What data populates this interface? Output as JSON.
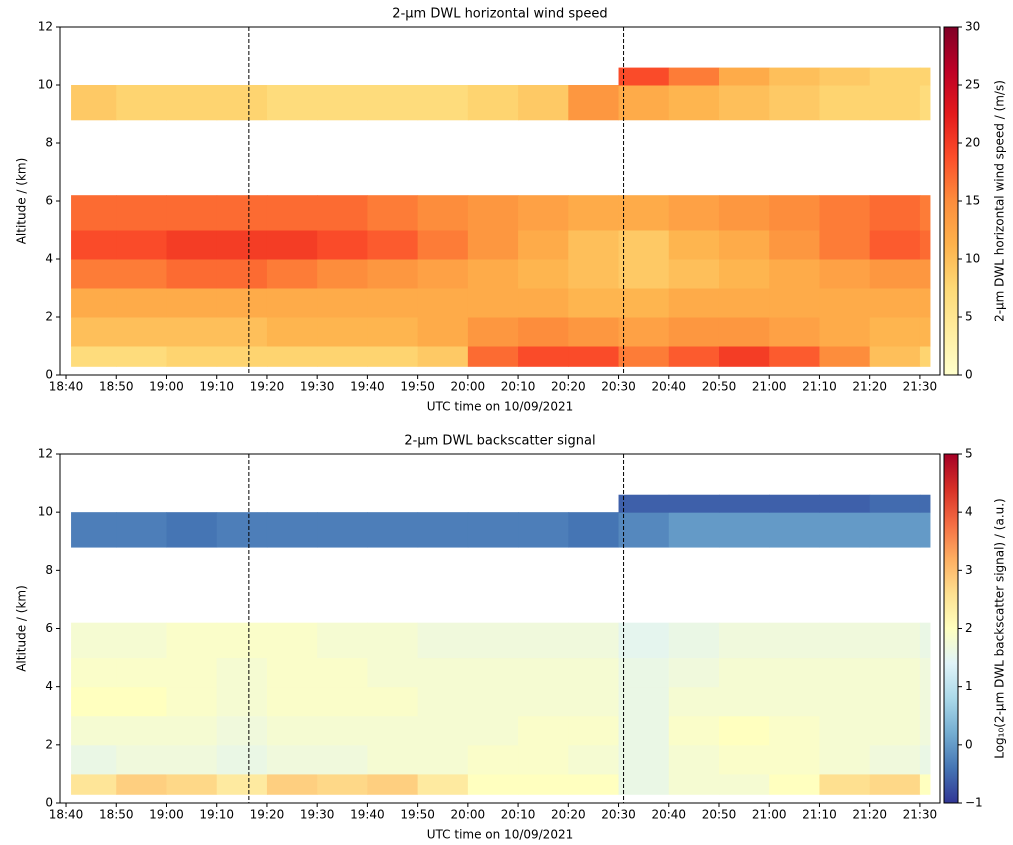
{
  "chart_data": [
    {
      "type": "heatmap",
      "title": "2-µm DWL horizontal wind speed",
      "xlabel": "UTC time on 10/09/2021",
      "ylabel": "Altitude / (km)",
      "colorbar_label": "2-µm DWL horizontal wind speed / (m/s)",
      "xlim": [
        1118.8,
        1294
      ],
      "ylim": [
        0,
        12
      ],
      "xticks": [
        {
          "value": 1120,
          "label": "18:40"
        },
        {
          "value": 1130,
          "label": "18:50"
        },
        {
          "value": 1140,
          "label": "19:00"
        },
        {
          "value": 1150,
          "label": "19:10"
        },
        {
          "value": 1160,
          "label": "19:20"
        },
        {
          "value": 1170,
          "label": "19:30"
        },
        {
          "value": 1180,
          "label": "19:40"
        },
        {
          "value": 1190,
          "label": "19:50"
        },
        {
          "value": 1200,
          "label": "20:00"
        },
        {
          "value": 1210,
          "label": "20:10"
        },
        {
          "value": 1220,
          "label": "20:20"
        },
        {
          "value": 1230,
          "label": "20:30"
        },
        {
          "value": 1240,
          "label": "20:40"
        },
        {
          "value": 1250,
          "label": "20:50"
        },
        {
          "value": 1260,
          "label": "21:00"
        },
        {
          "value": 1270,
          "label": "21:10"
        },
        {
          "value": 1280,
          "label": "21:20"
        },
        {
          "value": 1290,
          "label": "21:30"
        }
      ],
      "yticks": [
        0,
        2,
        4,
        6,
        8,
        10,
        12
      ],
      "clim": [
        0,
        30
      ],
      "cticks": [
        0,
        5,
        10,
        15,
        20,
        25,
        30
      ],
      "colormap": [
        "#ffffcc",
        "#ffeda0",
        "#fed976",
        "#feb24c",
        "#fd8d3c",
        "#fc4e2a",
        "#e31a1c",
        "#bd0026",
        "#800026"
      ],
      "vlines": [
        1156.4,
        1231
      ],
      "x_edges": [
        1121,
        1130,
        1140,
        1150,
        1160,
        1170,
        1180,
        1190,
        1200,
        1210,
        1220,
        1230,
        1240,
        1250,
        1260,
        1270,
        1280,
        1290,
        1292
      ],
      "y_edges": [
        0.3,
        1,
        2,
        3,
        4,
        5,
        6.2,
        8.8,
        10,
        10.6
      ],
      "values": [
        [
          7,
          7,
          8,
          8,
          8,
          8,
          8,
          9,
          17,
          19,
          19,
          16,
          18,
          20,
          18,
          15,
          10,
          8
        ],
        [
          10,
          10,
          10,
          10,
          11,
          11,
          11,
          12,
          14,
          15,
          14,
          13,
          14,
          14,
          13,
          12,
          11,
          11
        ],
        [
          12,
          12,
          12,
          12,
          12,
          12,
          12,
          12,
          12,
          12,
          11,
          11,
          12,
          12,
          12,
          12,
          12,
          12
        ],
        [
          16,
          16,
          17,
          17,
          16,
          15,
          14,
          13,
          12,
          11,
          10,
          9,
          10,
          11,
          12,
          13,
          14,
          14
        ],
        [
          19,
          19,
          20,
          20,
          20,
          19,
          18,
          16,
          14,
          12,
          10,
          9,
          11,
          12,
          14,
          16,
          18,
          17
        ],
        [
          17,
          17,
          17,
          17,
          17,
          17,
          16,
          15,
          14,
          13,
          12,
          12,
          13,
          14,
          15,
          16,
          17,
          16
        ],
        [
          null,
          null,
          null,
          null,
          null,
          null,
          null,
          null,
          null,
          null,
          null,
          null,
          null,
          null,
          null,
          null,
          null,
          null
        ],
        [
          9,
          8,
          8,
          8,
          7,
          7,
          7,
          7,
          8,
          9,
          14,
          12,
          11,
          10,
          9,
          8,
          8,
          7
        ],
        [
          null,
          null,
          null,
          null,
          null,
          null,
          null,
          null,
          null,
          null,
          null,
          19,
          16,
          12,
          10,
          9,
          8,
          8
        ]
      ]
    },
    {
      "type": "heatmap",
      "title": "2-µm DWL backscatter signal",
      "xlabel": "UTC time on 10/09/2021",
      "ylabel": "Altitude / (km)",
      "colorbar_label": "Log₁₀(2-µm DWL backscatter signal) / (a.u.)",
      "xlim": [
        1118.8,
        1294
      ],
      "ylim": [
        0,
        12
      ],
      "xticks": [
        {
          "value": 1120,
          "label": "18:40"
        },
        {
          "value": 1130,
          "label": "18:50"
        },
        {
          "value": 1140,
          "label": "19:00"
        },
        {
          "value": 1150,
          "label": "19:10"
        },
        {
          "value": 1160,
          "label": "19:20"
        },
        {
          "value": 1170,
          "label": "19:30"
        },
        {
          "value": 1180,
          "label": "19:40"
        },
        {
          "value": 1190,
          "label": "19:50"
        },
        {
          "value": 1200,
          "label": "20:00"
        },
        {
          "value": 1210,
          "label": "20:10"
        },
        {
          "value": 1220,
          "label": "20:20"
        },
        {
          "value": 1230,
          "label": "20:30"
        },
        {
          "value": 1240,
          "label": "20:40"
        },
        {
          "value": 1250,
          "label": "20:50"
        },
        {
          "value": 1260,
          "label": "21:00"
        },
        {
          "value": 1270,
          "label": "21:10"
        },
        {
          "value": 1280,
          "label": "21:20"
        },
        {
          "value": 1290,
          "label": "21:30"
        }
      ],
      "yticks": [
        0,
        2,
        4,
        6,
        8,
        10,
        12
      ],
      "clim": [
        -1,
        5
      ],
      "cticks": [
        {
          "value": -1,
          "label": "−1"
        },
        0,
        1,
        2,
        3,
        4,
        5
      ],
      "colormap": [
        "#313695",
        "#4575b4",
        "#74add1",
        "#abd9e9",
        "#e0f3f8",
        "#ffffbf",
        "#fee090",
        "#fdae61",
        "#f46d43",
        "#d73027",
        "#a50026"
      ],
      "vlines": [
        1156.4,
        1231
      ],
      "x_edges": [
        1121,
        1130,
        1140,
        1150,
        1160,
        1170,
        1180,
        1190,
        1200,
        1210,
        1220,
        1230,
        1240,
        1250,
        1260,
        1270,
        1280,
        1290,
        1292
      ],
      "y_edges": [
        0.3,
        1,
        2,
        3,
        4,
        5,
        6.2,
        8.8,
        10,
        10.6
      ],
      "values": [
        [
          2.5,
          2.8,
          2.7,
          2.4,
          2.8,
          2.7,
          2.8,
          2.4,
          2,
          2,
          2,
          1.6,
          1.8,
          1.8,
          2,
          2.6,
          2.7,
          2
        ],
        [
          1.6,
          1.7,
          1.7,
          1.6,
          1.7,
          1.7,
          1.8,
          1.8,
          1.9,
          1.9,
          1.8,
          1.6,
          1.8,
          1.9,
          1.9,
          1.8,
          1.7,
          1.6
        ],
        [
          1.8,
          1.8,
          1.8,
          1.7,
          1.8,
          1.8,
          1.8,
          1.8,
          1.8,
          1.9,
          1.9,
          1.6,
          1.9,
          2,
          1.9,
          1.8,
          1.8,
          1.7
        ],
        [
          2,
          2,
          1.9,
          1.8,
          1.9,
          1.9,
          1.9,
          1.8,
          1.8,
          1.8,
          1.8,
          1.6,
          1.8,
          1.8,
          1.8,
          1.8,
          1.8,
          1.7
        ],
        [
          1.9,
          1.9,
          1.9,
          1.8,
          1.9,
          1.9,
          1.8,
          1.8,
          1.8,
          1.8,
          1.8,
          1.6,
          1.7,
          1.8,
          1.8,
          1.8,
          1.8,
          1.7
        ],
        [
          1.8,
          1.8,
          1.9,
          1.9,
          1.9,
          1.8,
          1.8,
          1.7,
          1.7,
          1.7,
          1.7,
          1.5,
          1.6,
          1.7,
          1.7,
          1.7,
          1.7,
          1.6
        ],
        [
          null,
          null,
          null,
          null,
          null,
          null,
          null,
          null,
          null,
          null,
          null,
          null,
          null,
          null,
          null,
          null,
          null,
          null
        ],
        [
          -0.3,
          -0.3,
          -0.4,
          -0.3,
          -0.3,
          -0.3,
          -0.3,
          -0.3,
          -0.3,
          -0.3,
          -0.4,
          -0.2,
          0,
          0,
          0,
          0,
          0,
          0
        ],
        [
          null,
          null,
          null,
          null,
          null,
          null,
          null,
          null,
          null,
          null,
          null,
          -0.6,
          -0.6,
          -0.6,
          -0.6,
          -0.6,
          -0.5,
          -0.5
        ]
      ]
    }
  ]
}
